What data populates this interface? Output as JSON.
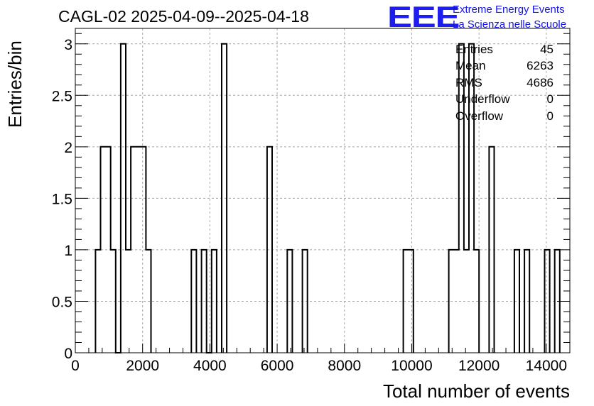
{
  "chart_data": {
    "type": "bar",
    "title": "CAGL-02 2025-04-09--2025-04-18",
    "xlabel": "Total number of events",
    "ylabel": "Entries/bin",
    "xlim": [
      0,
      14700
    ],
    "ylim": [
      0,
      3.15
    ],
    "grid": true,
    "bin_width": 150,
    "bins": [
      {
        "x": 600,
        "y": 1
      },
      {
        "x": 750,
        "y": 2
      },
      {
        "x": 900,
        "y": 2
      },
      {
        "x": 1050,
        "y": 1
      },
      {
        "x": 1200,
        "y": 0
      },
      {
        "x": 1350,
        "y": 3
      },
      {
        "x": 1500,
        "y": 1
      },
      {
        "x": 1650,
        "y": 2
      },
      {
        "x": 1800,
        "y": 2
      },
      {
        "x": 1950,
        "y": 2
      },
      {
        "x": 2100,
        "y": 1
      },
      {
        "x": 3450,
        "y": 1
      },
      {
        "x": 3750,
        "y": 1
      },
      {
        "x": 3900,
        "y": 0
      },
      {
        "x": 4050,
        "y": 1
      },
      {
        "x": 4350,
        "y": 3
      },
      {
        "x": 5700,
        "y": 2
      },
      {
        "x": 6300,
        "y": 1
      },
      {
        "x": 6750,
        "y": 1
      },
      {
        "x": 9750,
        "y": 1
      },
      {
        "x": 9900,
        "y": 1
      },
      {
        "x": 11100,
        "y": 1
      },
      {
        "x": 11250,
        "y": 1
      },
      {
        "x": 11400,
        "y": 3
      },
      {
        "x": 11550,
        "y": 1
      },
      {
        "x": 11700,
        "y": 3
      },
      {
        "x": 11850,
        "y": 1
      },
      {
        "x": 12300,
        "y": 2
      },
      {
        "x": 13050,
        "y": 1
      },
      {
        "x": 13350,
        "y": 1
      },
      {
        "x": 13950,
        "y": 1
      },
      {
        "x": 14250,
        "y": 1
      }
    ],
    "x_major_ticks": [
      0,
      2000,
      4000,
      6000,
      8000,
      10000,
      12000,
      14000
    ],
    "x_tick_labels": [
      "0",
      "2000",
      "4000",
      "6000",
      "8000",
      "10000",
      "12000",
      "14000"
    ],
    "y_major_ticks": [
      0,
      0.5,
      1,
      1.5,
      2,
      2.5,
      3
    ],
    "y_tick_labels": [
      "0",
      "0.5",
      "1",
      "1.5",
      "2",
      "2.5",
      "3"
    ],
    "legend": "top-right"
  },
  "stats": [
    {
      "label": "Entries",
      "value": "45"
    },
    {
      "label": "Mean",
      "value": "6263"
    },
    {
      "label": "RMS",
      "value": "4686"
    },
    {
      "label": "Underflow",
      "value": "0"
    },
    {
      "label": "Overflow",
      "value": "0"
    }
  ],
  "logo": {
    "mark": "EEE",
    "line1": "Extreme Energy Events",
    "line2": "La Scienza nelle Scuole"
  }
}
